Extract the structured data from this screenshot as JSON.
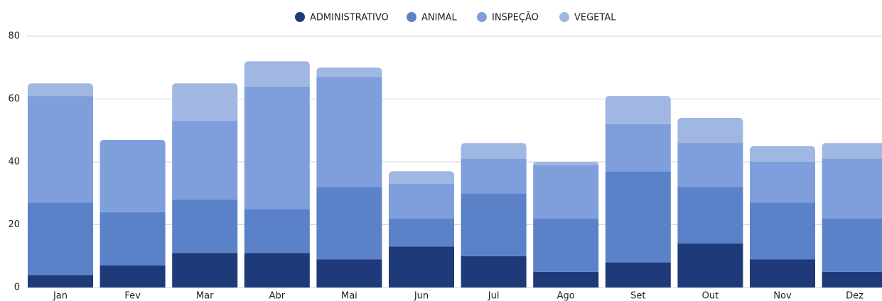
{
  "chart_data": {
    "type": "stacked_bar",
    "categories": [
      "Jan",
      "Fev",
      "Mar",
      "Abr",
      "Mai",
      "Jun",
      "Jul",
      "Ago",
      "Set",
      "Out",
      "Nov",
      "Dez"
    ],
    "series": [
      {
        "name": "ADMINISTRATIVO",
        "color": "#1e3a78",
        "values": [
          4,
          7,
          11,
          11,
          9,
          13,
          10,
          5,
          8,
          14,
          9,
          5
        ]
      },
      {
        "name": "ANIMAL",
        "color": "#5b82c9",
        "values": [
          23,
          17,
          17,
          14,
          23,
          9,
          20,
          17,
          29,
          18,
          18,
          17
        ]
      },
      {
        "name": "INSPEÇÃO",
        "color": "#7e9fdc",
        "values": [
          34,
          23,
          25,
          39,
          35,
          11,
          11,
          17,
          15,
          14,
          13,
          19
        ]
      },
      {
        "name": "VEGETAL",
        "color": "#a0b7e2",
        "values": [
          4,
          0,
          12,
          8,
          3,
          4,
          5,
          1,
          9,
          8,
          5,
          5
        ]
      }
    ],
    "ylim": [
      0,
      80
    ],
    "yticks": [
      0,
      20,
      40,
      60,
      80
    ],
    "grid": true,
    "legend": "top"
  }
}
